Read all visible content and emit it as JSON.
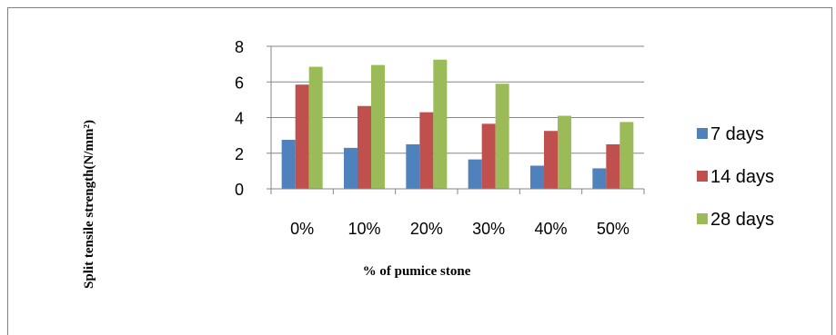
{
  "chart_data": {
    "type": "bar",
    "categories": [
      "0%",
      "10%",
      "20%",
      "30%",
      "40%",
      "50%"
    ],
    "series": [
      {
        "name": "7 days",
        "color": "#4F81BD",
        "values": [
          2.75,
          2.3,
          2.5,
          1.65,
          1.3,
          1.15
        ]
      },
      {
        "name": "14 days",
        "color": "#C0504D",
        "values": [
          5.85,
          4.65,
          4.3,
          3.65,
          3.25,
          2.5
        ]
      },
      {
        "name": "28 days",
        "color": "#9BBB59",
        "values": [
          6.85,
          6.95,
          7.25,
          5.9,
          4.1,
          3.75
        ]
      }
    ],
    "ylim": [
      0,
      8
    ],
    "yticks": [
      "0",
      "2",
      "4",
      "6",
      "8"
    ],
    "xlabel": "% of pumice stone",
    "ylabel": "Split tensile strength(N/mm²)",
    "grid": true,
    "legend_position": "right"
  }
}
